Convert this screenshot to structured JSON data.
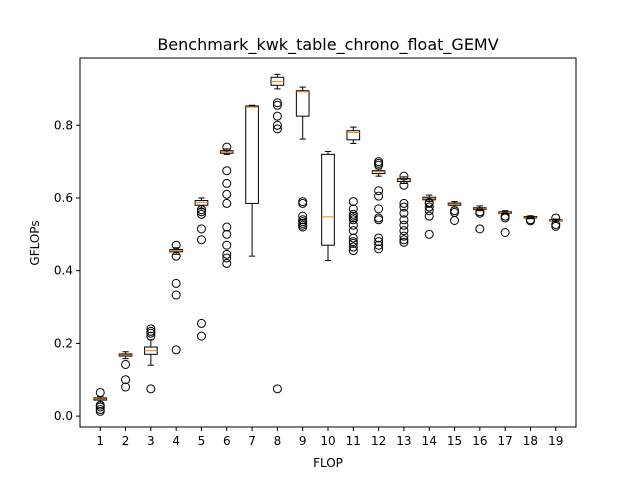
{
  "chart_data": {
    "type": "box",
    "title": "Benchmark_kwk_table_chrono_float_GEMV",
    "xlabel": "FLOP",
    "ylabel": "GFLOPs",
    "categories": [
      "1",
      "2",
      "3",
      "4",
      "5",
      "6",
      "7",
      "8",
      "9",
      "10",
      "11",
      "12",
      "13",
      "14",
      "15",
      "16",
      "17",
      "18",
      "19"
    ],
    "ylim": [
      -0.03,
      0.985
    ],
    "yticks": [
      0.0,
      0.2,
      0.4,
      0.6,
      0.8
    ],
    "ytick_labels": [
      "0.0",
      "0.2",
      "0.4",
      "0.6",
      "0.8"
    ],
    "grid": false,
    "colors": {
      "box": "#000000",
      "median": "#ff7f0e",
      "flier": "#000000"
    },
    "boxes": [
      {
        "q1": 0.044,
        "median": 0.047,
        "q3": 0.05,
        "whislo": 0.036,
        "whishi": 0.054,
        "fliers": [
          0.013,
          0.018,
          0.025,
          0.03,
          0.065
        ]
      },
      {
        "q1": 0.165,
        "median": 0.168,
        "q3": 0.171,
        "whislo": 0.158,
        "whishi": 0.177,
        "fliers": [
          0.08,
          0.1,
          0.142
        ]
      },
      {
        "q1": 0.17,
        "median": 0.18,
        "q3": 0.19,
        "whislo": 0.14,
        "whishi": 0.21,
        "fliers": [
          0.075,
          0.22,
          0.228,
          0.233,
          0.24
        ]
      },
      {
        "q1": 0.452,
        "median": 0.455,
        "q3": 0.458,
        "whislo": 0.445,
        "whishi": 0.463,
        "fliers": [
          0.182,
          0.333,
          0.365,
          0.44,
          0.47
        ]
      },
      {
        "q1": 0.58,
        "median": 0.588,
        "q3": 0.593,
        "whislo": 0.57,
        "whishi": 0.6,
        "fliers": [
          0.22,
          0.255,
          0.485,
          0.515,
          0.555,
          0.562,
          0.568
        ]
      },
      {
        "q1": 0.723,
        "median": 0.727,
        "q3": 0.73,
        "whislo": 0.72,
        "whishi": 0.735,
        "fliers": [
          0.42,
          0.435,
          0.445,
          0.47,
          0.5,
          0.52,
          0.585,
          0.61,
          0.64,
          0.675,
          0.74
        ]
      },
      {
        "q1": 0.585,
        "median": 0.85,
        "q3": 0.853,
        "whislo": 0.44,
        "whishi": 0.855,
        "fliers": []
      },
      {
        "q1": 0.91,
        "median": 0.92,
        "q3": 0.932,
        "whislo": 0.9,
        "whishi": 0.94,
        "fliers": [
          0.075,
          0.79,
          0.8,
          0.825,
          0.855,
          0.862
        ]
      },
      {
        "q1": 0.825,
        "median": 0.892,
        "q3": 0.895,
        "whislo": 0.762,
        "whishi": 0.905,
        "fliers": [
          0.52,
          0.525,
          0.53,
          0.535,
          0.54,
          0.55,
          0.585,
          0.59
        ]
      },
      {
        "q1": 0.47,
        "median": 0.548,
        "q3": 0.72,
        "whislo": 0.428,
        "whishi": 0.728,
        "fliers": []
      },
      {
        "q1": 0.76,
        "median": 0.78,
        "q3": 0.785,
        "whislo": 0.75,
        "whishi": 0.795,
        "fliers": [
          0.455,
          0.465,
          0.475,
          0.48,
          0.49,
          0.51,
          0.525,
          0.54,
          0.545,
          0.55,
          0.555,
          0.57,
          0.59
        ]
      },
      {
        "q1": 0.667,
        "median": 0.672,
        "q3": 0.675,
        "whislo": 0.66,
        "whishi": 0.68,
        "fliers": [
          0.46,
          0.47,
          0.48,
          0.49,
          0.54,
          0.545,
          0.57,
          0.605,
          0.62,
          0.69,
          0.695,
          0.7
        ]
      },
      {
        "q1": 0.645,
        "median": 0.65,
        "q3": 0.653,
        "whislo": 0.64,
        "whishi": 0.658,
        "fliers": [
          0.478,
          0.485,
          0.495,
          0.51,
          0.525,
          0.54,
          0.558,
          0.575,
          0.585,
          0.635,
          0.66
        ]
      },
      {
        "q1": 0.595,
        "median": 0.598,
        "q3": 0.602,
        "whislo": 0.59,
        "whishi": 0.608,
        "fliers": [
          0.5,
          0.55,
          0.565,
          0.575,
          0.585,
          0.588
        ]
      },
      {
        "q1": 0.58,
        "median": 0.583,
        "q3": 0.586,
        "whislo": 0.575,
        "whishi": 0.59,
        "fliers": [
          0.538,
          0.56,
          0.565
        ]
      },
      {
        "q1": 0.568,
        "median": 0.57,
        "q3": 0.573,
        "whislo": 0.565,
        "whishi": 0.578,
        "fliers": [
          0.515,
          0.558,
          0.562
        ]
      },
      {
        "q1": 0.558,
        "median": 0.56,
        "q3": 0.562,
        "whislo": 0.556,
        "whishi": 0.565,
        "fliers": [
          0.505,
          0.545,
          0.55
        ]
      },
      {
        "q1": 0.545,
        "median": 0.547,
        "q3": 0.549,
        "whislo": 0.543,
        "whishi": 0.551,
        "fliers": [
          0.537,
          0.54
        ]
      },
      {
        "q1": 0.537,
        "median": 0.538,
        "q3": 0.54,
        "whislo": 0.535,
        "whishi": 0.542,
        "fliers": [
          0.522,
          0.527,
          0.545
        ]
      }
    ]
  }
}
